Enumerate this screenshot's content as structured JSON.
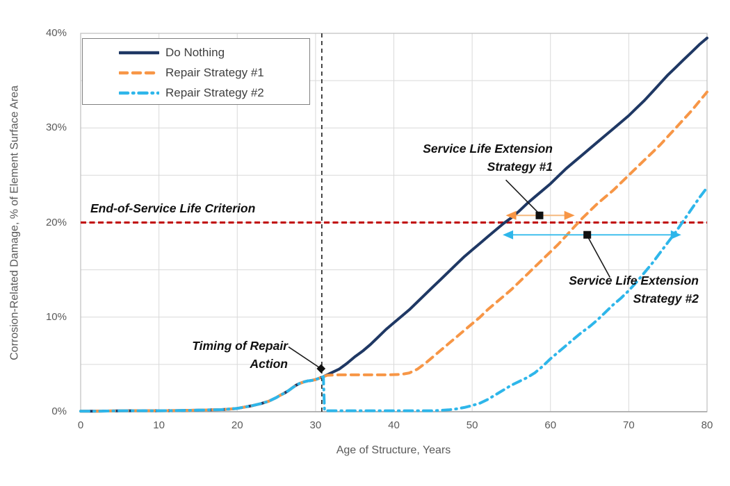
{
  "figure": {
    "background": "#ffffff"
  },
  "chart_data": {
    "type": "line",
    "title": "",
    "xlabel": "Age of Structure, Years",
    "ylabel": "Corrosion-Related Damage, % of Element Surface Area",
    "xlim": [
      0,
      80
    ],
    "ylim": [
      0,
      40
    ],
    "x_tick_values": [
      0,
      10,
      20,
      30,
      40,
      50,
      60,
      70,
      80
    ],
    "x_tick_labels": [
      "0",
      "10",
      "20",
      "30",
      "40",
      "50",
      "60",
      "70",
      "80"
    ],
    "y_tick_values": [
      0,
      10,
      20,
      30,
      40
    ],
    "y_tick_labels": [
      "0%",
      "10%",
      "20%",
      "30%",
      "40%"
    ],
    "x_grid_step": 10,
    "y_grid_step": 5,
    "grid_color": "#d9d9d9",
    "border_color": "#bfbfbf",
    "legend_position": "top-left",
    "series": [
      {
        "name": "Do Nothing",
        "color": "#1f3864",
        "style": "solid",
        "width": 4,
        "points": [
          [
            0,
            0.05
          ],
          [
            2,
            0.05
          ],
          [
            4,
            0.08
          ],
          [
            6,
            0.1
          ],
          [
            8,
            0.1
          ],
          [
            10,
            0.1
          ],
          [
            12,
            0.12
          ],
          [
            14,
            0.15
          ],
          [
            16,
            0.18
          ],
          [
            18,
            0.22
          ],
          [
            19,
            0.28
          ],
          [
            20,
            0.35
          ],
          [
            21,
            0.5
          ],
          [
            22,
            0.65
          ],
          [
            23,
            0.85
          ],
          [
            24,
            1.1
          ],
          [
            25,
            1.5
          ],
          [
            25.5,
            1.75
          ],
          [
            26,
            1.95
          ],
          [
            26.5,
            2.2
          ],
          [
            27,
            2.5
          ],
          [
            27.5,
            2.8
          ],
          [
            28,
            3.0
          ],
          [
            28.5,
            3.15
          ],
          [
            29,
            3.25
          ],
          [
            29.5,
            3.3
          ],
          [
            30,
            3.4
          ],
          [
            30.5,
            3.55
          ],
          [
            31,
            3.7
          ],
          [
            32,
            4.1
          ],
          [
            33,
            4.5
          ],
          [
            34,
            5.1
          ],
          [
            35,
            5.8
          ],
          [
            36,
            6.4
          ],
          [
            37,
            7.1
          ],
          [
            38,
            7.9
          ],
          [
            39,
            8.7
          ],
          [
            40,
            9.4
          ],
          [
            41,
            10.1
          ],
          [
            42,
            10.8
          ],
          [
            43,
            11.6
          ],
          [
            44,
            12.4
          ],
          [
            45,
            13.2
          ],
          [
            46,
            14.0
          ],
          [
            47,
            14.8
          ],
          [
            48,
            15.6
          ],
          [
            49,
            16.4
          ],
          [
            50,
            17.1
          ],
          [
            51,
            17.8
          ],
          [
            52,
            18.5
          ],
          [
            53,
            19.2
          ],
          [
            54,
            19.9
          ],
          [
            55,
            20.5
          ],
          [
            56,
            21.2
          ],
          [
            57,
            22.0
          ],
          [
            58,
            22.7
          ],
          [
            59,
            23.4
          ],
          [
            60,
            24.1
          ],
          [
            61,
            24.9
          ],
          [
            62,
            25.7
          ],
          [
            63,
            26.4
          ],
          [
            64,
            27.1
          ],
          [
            65,
            27.8
          ],
          [
            66,
            28.5
          ],
          [
            67,
            29.2
          ],
          [
            68,
            29.9
          ],
          [
            69,
            30.6
          ],
          [
            70,
            31.3
          ],
          [
            71,
            32.1
          ],
          [
            72,
            32.9
          ],
          [
            73,
            33.8
          ],
          [
            74,
            34.7
          ],
          [
            75,
            35.6
          ],
          [
            76,
            36.4
          ],
          [
            77,
            37.2
          ],
          [
            78,
            38.0
          ],
          [
            79,
            38.8
          ],
          [
            80,
            39.5
          ]
        ]
      },
      {
        "name": "Repair Strategy #1",
        "color": "#f79646",
        "style": "dashed",
        "width": 4,
        "points": [
          [
            0,
            0.05
          ],
          [
            2,
            0.05
          ],
          [
            4,
            0.08
          ],
          [
            6,
            0.1
          ],
          [
            8,
            0.1
          ],
          [
            10,
            0.1
          ],
          [
            12,
            0.12
          ],
          [
            14,
            0.15
          ],
          [
            16,
            0.18
          ],
          [
            18,
            0.22
          ],
          [
            19,
            0.28
          ],
          [
            20,
            0.35
          ],
          [
            21,
            0.5
          ],
          [
            22,
            0.65
          ],
          [
            23,
            0.85
          ],
          [
            24,
            1.1
          ],
          [
            25,
            1.5
          ],
          [
            25.5,
            1.75
          ],
          [
            26,
            1.95
          ],
          [
            26.5,
            2.2
          ],
          [
            27,
            2.5
          ],
          [
            27.5,
            2.8
          ],
          [
            28,
            3.0
          ],
          [
            28.5,
            3.15
          ],
          [
            29,
            3.25
          ],
          [
            29.5,
            3.3
          ],
          [
            30,
            3.4
          ],
          [
            30.5,
            3.55
          ],
          [
            31,
            3.7
          ],
          [
            31.5,
            3.85
          ],
          [
            33,
            3.9
          ],
          [
            35,
            3.9
          ],
          [
            37,
            3.9
          ],
          [
            39,
            3.9
          ],
          [
            41,
            3.95
          ],
          [
            42,
            4.1
          ],
          [
            43,
            4.5
          ],
          [
            44,
            5.1
          ],
          [
            45,
            5.8
          ],
          [
            46,
            6.5
          ],
          [
            47,
            7.2
          ],
          [
            48,
            7.9
          ],
          [
            49,
            8.6
          ],
          [
            50,
            9.3
          ],
          [
            51,
            10.0
          ],
          [
            52,
            10.8
          ],
          [
            53,
            11.5
          ],
          [
            54,
            12.2
          ],
          [
            55,
            12.9
          ],
          [
            56,
            13.7
          ],
          [
            57,
            14.5
          ],
          [
            58,
            15.3
          ],
          [
            59,
            16.1
          ],
          [
            60,
            16.9
          ],
          [
            61,
            17.7
          ],
          [
            62,
            18.6
          ],
          [
            63,
            19.5
          ],
          [
            64,
            20.4
          ],
          [
            65,
            21.2
          ],
          [
            66,
            22.0
          ],
          [
            67,
            22.7
          ],
          [
            68,
            23.4
          ],
          [
            69,
            24.2
          ],
          [
            70,
            25.0
          ],
          [
            71,
            25.8
          ],
          [
            72,
            26.6
          ],
          [
            73,
            27.4
          ],
          [
            74,
            28.2
          ],
          [
            75,
            29.1
          ],
          [
            76,
            30.0
          ],
          [
            77,
            30.9
          ],
          [
            78,
            31.8
          ],
          [
            79,
            32.8
          ],
          [
            80,
            33.8
          ]
        ]
      },
      {
        "name": "Repair Strategy #2",
        "color": "#2eb6ea",
        "style": "dashdot",
        "width": 4,
        "points": [
          [
            0,
            0.05
          ],
          [
            2,
            0.05
          ],
          [
            4,
            0.08
          ],
          [
            6,
            0.1
          ],
          [
            8,
            0.1
          ],
          [
            10,
            0.1
          ],
          [
            12,
            0.12
          ],
          [
            14,
            0.15
          ],
          [
            16,
            0.18
          ],
          [
            18,
            0.22
          ],
          [
            19,
            0.28
          ],
          [
            20,
            0.35
          ],
          [
            21,
            0.5
          ],
          [
            22,
            0.65
          ],
          [
            23,
            0.85
          ],
          [
            24,
            1.1
          ],
          [
            25,
            1.5
          ],
          [
            25.5,
            1.75
          ],
          [
            26,
            1.95
          ],
          [
            26.5,
            2.2
          ],
          [
            27,
            2.5
          ],
          [
            27.5,
            2.8
          ],
          [
            28,
            3.0
          ],
          [
            28.5,
            3.15
          ],
          [
            29,
            3.25
          ],
          [
            29.5,
            3.3
          ],
          [
            30,
            3.4
          ],
          [
            30.5,
            3.55
          ],
          [
            31,
            3.7
          ],
          [
            31.15,
            0.1
          ],
          [
            33,
            0.1
          ],
          [
            35,
            0.1
          ],
          [
            37,
            0.1
          ],
          [
            39,
            0.1
          ],
          [
            41,
            0.1
          ],
          [
            43,
            0.1
          ],
          [
            45,
            0.1
          ],
          [
            46,
            0.15
          ],
          [
            47,
            0.2
          ],
          [
            48,
            0.3
          ],
          [
            49,
            0.45
          ],
          [
            50,
            0.65
          ],
          [
            51,
            0.9
          ],
          [
            52,
            1.3
          ],
          [
            53,
            1.8
          ],
          [
            54,
            2.3
          ],
          [
            55,
            2.8
          ],
          [
            56,
            3.2
          ],
          [
            57,
            3.6
          ],
          [
            58,
            4.1
          ],
          [
            59,
            4.8
          ],
          [
            60,
            5.6
          ],
          [
            61,
            6.3
          ],
          [
            62,
            7.0
          ],
          [
            63,
            7.7
          ],
          [
            64,
            8.4
          ],
          [
            65,
            9.0
          ],
          [
            66,
            9.7
          ],
          [
            67,
            10.5
          ],
          [
            68,
            11.3
          ],
          [
            69,
            12.0
          ],
          [
            70,
            12.8
          ],
          [
            71,
            13.7
          ],
          [
            72,
            14.7
          ],
          [
            73,
            15.7
          ],
          [
            74,
            16.8
          ],
          [
            75,
            17.9
          ],
          [
            76,
            19.0
          ],
          [
            77,
            20.2
          ],
          [
            78,
            21.4
          ],
          [
            79,
            22.6
          ],
          [
            80,
            23.7
          ]
        ]
      }
    ],
    "reference_lines": [
      {
        "name": "end-of-service-criterion-line",
        "axis": "y",
        "value": 20,
        "color": "#c00000",
        "dash": "8 4.5",
        "width": 3
      },
      {
        "name": "timing-of-repair-line",
        "axis": "x",
        "value": 30.8,
        "color": "#1a1a1a",
        "dash": "6 5",
        "width": 1.6
      }
    ],
    "arrows": [
      {
        "name": "service-life-extension-1-arrow",
        "y": 20.75,
        "x_from": 54.3,
        "x_to": 63.1,
        "line_color": "#f5b97f",
        "head_color": "#f79646"
      },
      {
        "name": "service-life-extension-2-arrow",
        "y": 18.7,
        "x_from": 53.9,
        "x_to": 76.7,
        "line_color": "#41bfee",
        "head_color": "#2eb6ea"
      }
    ],
    "leader_lines": [
      {
        "name": "s1-leader",
        "from": [
          54.3,
          24.5
        ],
        "to": [
          58.6,
          20.9
        ],
        "marker": "square",
        "marker_at": [
          58.6,
          20.75
        ]
      },
      {
        "name": "s2-leader",
        "from": [
          64.7,
          18.6
        ],
        "to": [
          67.6,
          14.2
        ],
        "marker": "square",
        "marker_at": [
          64.7,
          18.7
        ]
      },
      {
        "name": "timing-leader",
        "from": [
          26.55,
          6.85
        ],
        "to": [
          30.7,
          4.55
        ],
        "marker": "diamond",
        "marker_at": [
          30.7,
          4.55
        ]
      }
    ],
    "annotations": {
      "eos": {
        "line1": "End-of-Service Life Criterion"
      },
      "s1": {
        "line1": "Service Life Extension",
        "line2": "Strategy #1"
      },
      "s2": {
        "line1": "Service Life Extension",
        "line2": "Strategy #2"
      },
      "timing": {
        "line1": "Timing of Repair",
        "line2": "Action"
      }
    }
  },
  "legend": {
    "items": [
      "Do Nothing",
      "Repair Strategy #1",
      "Repair Strategy #2"
    ]
  }
}
